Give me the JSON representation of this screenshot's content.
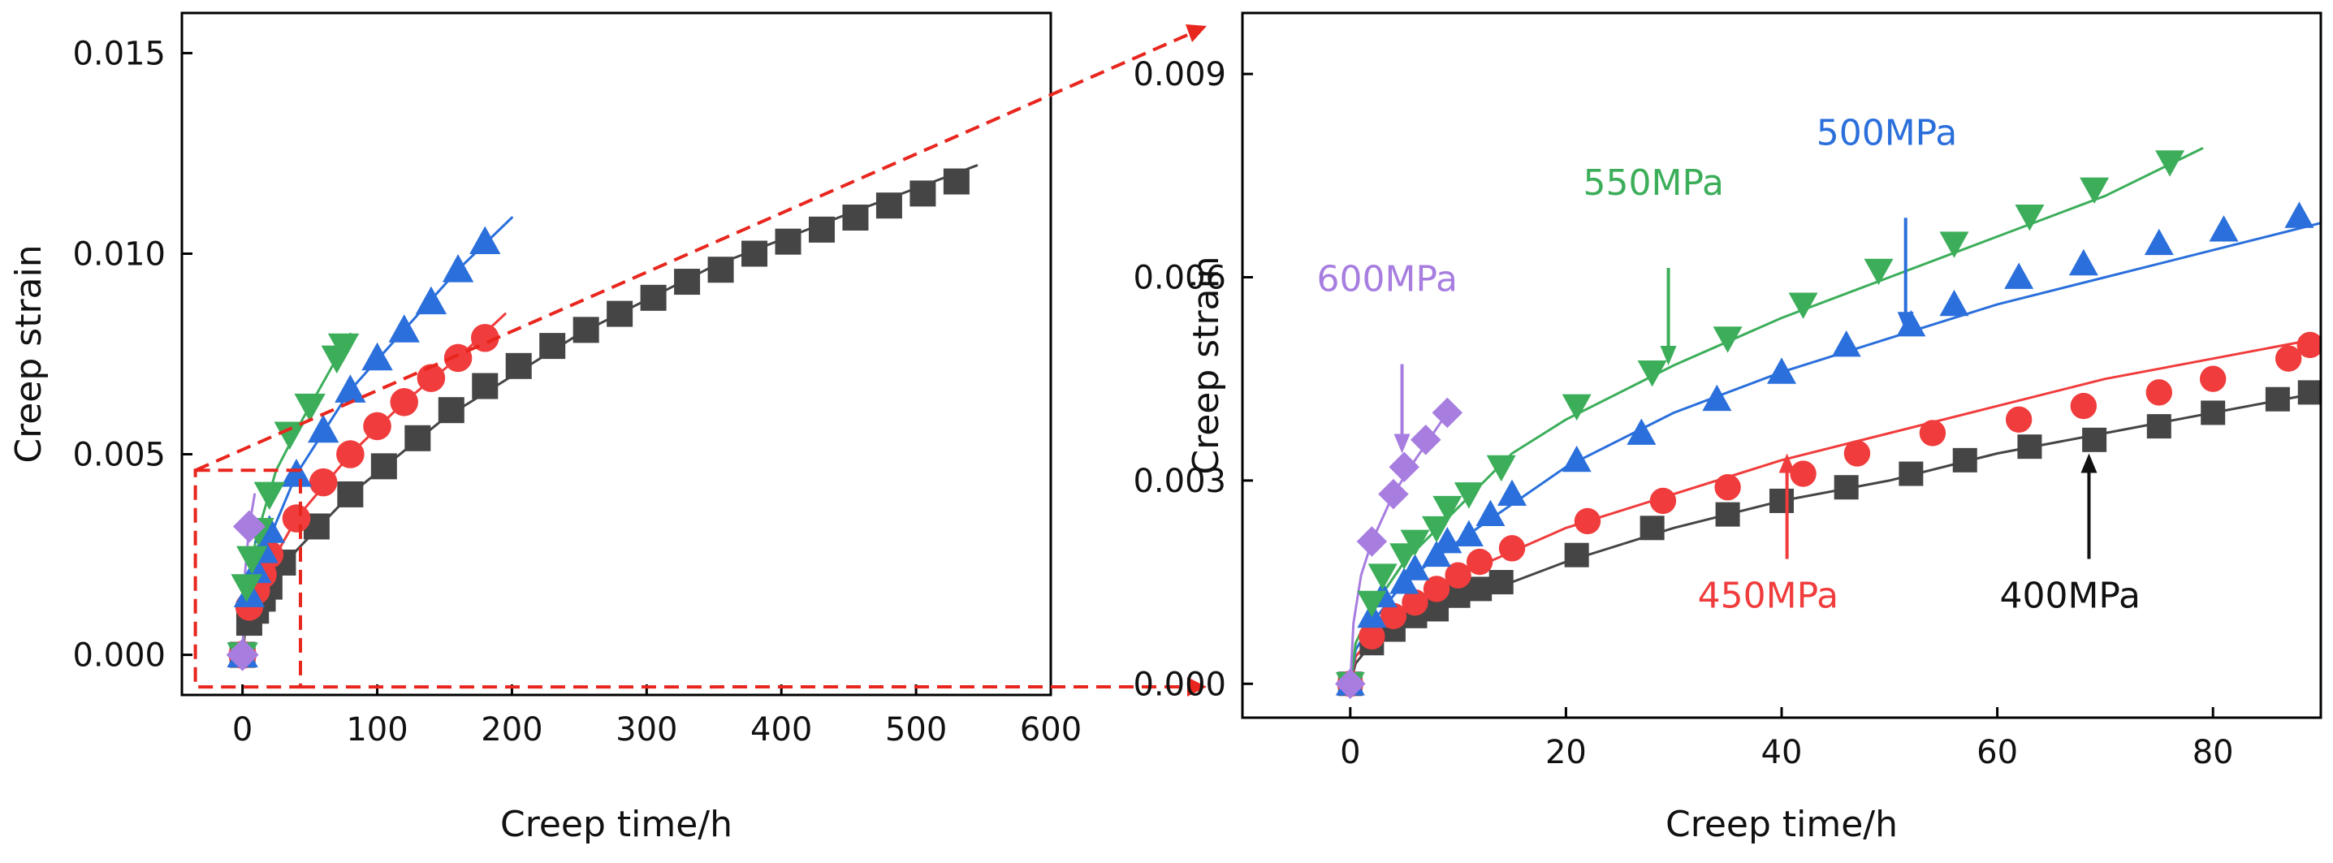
{
  "chart_data": [
    {
      "type": "scatter",
      "title": "",
      "xlabel": "Creep time/h",
      "ylabel": "Creep strain",
      "xlim": [
        -45,
        600
      ],
      "ylim": [
        -0.001,
        0.016
      ],
      "x_ticks": [
        0,
        100,
        200,
        300,
        400,
        500,
        600
      ],
      "x_tick_labels": [
        "0",
        "100",
        "200",
        "300",
        "400",
        "500",
        "600"
      ],
      "y_ticks": [
        0.0,
        0.005,
        0.01,
        0.015
      ],
      "y_tick_labels": [
        "0.000",
        "0.005",
        "0.010",
        "0.015"
      ],
      "grid": false,
      "legend": "none",
      "zoom_box": {
        "x": [
          -35,
          43
        ],
        "y": [
          -0.0008,
          0.0046
        ]
      },
      "series": [
        {
          "stress": "400MPa",
          "marker": "square",
          "color": "#454545",
          "x": [
            0,
            5,
            10,
            15,
            20,
            30,
            55,
            80,
            105,
            130,
            155,
            180,
            205,
            230,
            255,
            280,
            305,
            330,
            355,
            380,
            405,
            430,
            455,
            480,
            505,
            530
          ],
          "y": [
            0.0,
            0.0008,
            0.0011,
            0.0014,
            0.0017,
            0.0023,
            0.0032,
            0.004,
            0.0047,
            0.0054,
            0.0061,
            0.0067,
            0.0072,
            0.0077,
            0.0081,
            0.0085,
            0.0089,
            0.0093,
            0.0096,
            0.01,
            0.0103,
            0.0106,
            0.0109,
            0.0112,
            0.0115,
            0.0118
          ],
          "curve_x": [
            0,
            2,
            5,
            10,
            20,
            40,
            80,
            150,
            250,
            350,
            450,
            545
          ],
          "curve_y": [
            0.0,
            0.0006,
            0.0009,
            0.0012,
            0.0017,
            0.0026,
            0.004,
            0.0059,
            0.008,
            0.0097,
            0.011,
            0.0122
          ]
        },
        {
          "stress": "450MPa",
          "marker": "circle",
          "color": "#f03c3c",
          "x": [
            0,
            5,
            10,
            15,
            20,
            40,
            60,
            80,
            100,
            120,
            140,
            160,
            180
          ],
          "y": [
            0.0,
            0.0012,
            0.0016,
            0.002,
            0.0025,
            0.0034,
            0.0043,
            0.005,
            0.0057,
            0.0063,
            0.0069,
            0.0074,
            0.0079
          ],
          "curve_x": [
            0,
            2,
            10,
            40,
            80,
            120,
            160,
            195
          ],
          "curve_y": [
            0.0,
            0.0008,
            0.0016,
            0.0034,
            0.005,
            0.0063,
            0.0074,
            0.0085
          ]
        },
        {
          "stress": "500MPa",
          "marker": "triangle-up",
          "color": "#2a6fdb",
          "x": [
            0,
            5,
            10,
            15,
            20,
            40,
            60,
            80,
            100,
            120,
            140,
            160,
            180
          ],
          "y": [
            0.0,
            0.0015,
            0.0021,
            0.0026,
            0.0031,
            0.0045,
            0.0056,
            0.0066,
            0.0074,
            0.0081,
            0.0088,
            0.0096,
            0.0103
          ],
          "curve_x": [
            0,
            2,
            10,
            40,
            80,
            120,
            160,
            200
          ],
          "curve_y": [
            0.0,
            0.0011,
            0.0021,
            0.0045,
            0.0066,
            0.0081,
            0.0096,
            0.0109
          ]
        },
        {
          "stress": "550MPa",
          "marker": "triangle-down",
          "color": "#3cae5a",
          "x": [
            0,
            3,
            7,
            12,
            20,
            35,
            50,
            70,
            75
          ],
          "y": [
            0.0,
            0.0017,
            0.0024,
            0.0031,
            0.004,
            0.0055,
            0.0062,
            0.0074,
            0.0077
          ],
          "curve_x": [
            0,
            2,
            10,
            25,
            45,
            65,
            80
          ],
          "curve_y": [
            0.0,
            0.0012,
            0.0029,
            0.0046,
            0.0059,
            0.0071,
            0.008
          ]
        },
        {
          "stress": "600MPa",
          "marker": "diamond",
          "color": "#a77de0",
          "x": [
            0,
            5
          ],
          "y": [
            0.0,
            0.0032
          ],
          "curve_x": [
            0,
            2,
            5,
            9
          ],
          "curve_y": [
            0.0,
            0.0021,
            0.0032,
            0.004
          ]
        }
      ]
    },
    {
      "type": "scatter",
      "title": "",
      "xlabel": "Creep time/h",
      "ylabel": "Creep strain",
      "xlim": [
        -10,
        90
      ],
      "ylim": [
        -0.0005,
        0.0099
      ],
      "x_ticks": [
        0,
        20,
        40,
        60,
        80
      ],
      "x_tick_labels": [
        "0",
        "20",
        "40",
        "60",
        "80"
      ],
      "y_ticks": [
        0.0,
        0.003,
        0.006,
        0.009
      ],
      "y_tick_labels": [
        "0.000",
        "0.003",
        "0.006",
        "0.009"
      ],
      "grid": false,
      "legend": "none",
      "series": [
        {
          "stress": "400MPa",
          "marker": "square",
          "color": "#454545",
          "x": [
            0,
            2,
            4,
            6,
            8,
            10,
            12,
            14,
            21,
            28,
            35,
            40,
            46,
            52,
            57,
            63,
            69,
            75,
            80,
            86,
            89
          ],
          "y": [
            0.0,
            0.0006,
            0.0008,
            0.001,
            0.0011,
            0.0013,
            0.0014,
            0.0015,
            0.0019,
            0.0023,
            0.0025,
            0.0027,
            0.0029,
            0.0031,
            0.0033,
            0.0035,
            0.0036,
            0.0038,
            0.004,
            0.0042,
            0.0043
          ],
          "curve_x": [
            0,
            0.5,
            2,
            5,
            10,
            20,
            30,
            40,
            50,
            60,
            70,
            80,
            90
          ],
          "curve_y": [
            0.0,
            0.0003,
            0.0006,
            0.0009,
            0.0012,
            0.0018,
            0.0023,
            0.0027,
            0.003,
            0.0034,
            0.0037,
            0.004,
            0.0043
          ]
        },
        {
          "stress": "450MPa",
          "marker": "circle",
          "color": "#f03c3c",
          "x": [
            0,
            2,
            4,
            6,
            8,
            10,
            12,
            15,
            22,
            29,
            35,
            42,
            47,
            54,
            62,
            68,
            75,
            80,
            87,
            89
          ],
          "y": [
            0.0,
            0.0007,
            0.001,
            0.0012,
            0.0014,
            0.0016,
            0.0018,
            0.002,
            0.0024,
            0.0027,
            0.0029,
            0.0031,
            0.0034,
            0.0037,
            0.0039,
            0.0041,
            0.0043,
            0.0045,
            0.0048,
            0.005
          ],
          "curve_x": [
            0,
            0.5,
            2,
            5,
            10,
            20,
            30,
            40,
            50,
            60,
            70,
            80,
            90
          ],
          "curve_y": [
            0.0,
            0.0004,
            0.0007,
            0.0011,
            0.0016,
            0.0023,
            0.0028,
            0.0033,
            0.0037,
            0.0041,
            0.0045,
            0.0048,
            0.0051
          ]
        },
        {
          "stress": "500MPa",
          "marker": "triangle-up",
          "color": "#2a6fdb",
          "x": [
            0,
            2,
            3,
            5,
            6,
            8,
            9,
            11,
            13,
            15,
            21,
            27,
            34,
            40,
            46,
            52,
            56,
            62,
            68,
            75,
            81,
            88
          ],
          "y": [
            0.0,
            0.001,
            0.0013,
            0.0015,
            0.0017,
            0.0019,
            0.0021,
            0.0022,
            0.0025,
            0.0028,
            0.0033,
            0.0037,
            0.0042,
            0.0046,
            0.005,
            0.0053,
            0.0056,
            0.006,
            0.0062,
            0.0065,
            0.0067,
            0.0069
          ],
          "curve_x": [
            0,
            0.5,
            2,
            5,
            10,
            20,
            30,
            40,
            50,
            60,
            70,
            80,
            90
          ],
          "curve_y": [
            0.0,
            0.0005,
            0.0009,
            0.0015,
            0.0021,
            0.0032,
            0.004,
            0.0046,
            0.0051,
            0.0056,
            0.006,
            0.0064,
            0.0068
          ]
        },
        {
          "stress": "550MPa",
          "marker": "triangle-down",
          "color": "#3cae5a",
          "x": [
            0,
            2,
            3,
            5,
            6,
            8,
            9,
            11,
            14,
            21,
            28,
            35,
            42,
            49,
            56,
            63,
            69,
            76
          ],
          "y": [
            0.0,
            0.0012,
            0.0016,
            0.0019,
            0.0021,
            0.0023,
            0.0026,
            0.0028,
            0.0032,
            0.0041,
            0.0046,
            0.0051,
            0.0056,
            0.0061,
            0.0065,
            0.0069,
            0.0073,
            0.0077
          ],
          "curve_x": [
            0,
            0.5,
            2,
            5,
            10,
            15,
            20,
            30,
            40,
            50,
            60,
            70,
            79
          ],
          "curve_y": [
            0.0,
            0.0006,
            0.0011,
            0.0018,
            0.0026,
            0.0034,
            0.0039,
            0.0047,
            0.0054,
            0.006,
            0.0066,
            0.0072,
            0.0079
          ]
        },
        {
          "stress": "600MPa",
          "marker": "diamond",
          "color": "#a77de0",
          "x": [
            0,
            2,
            4,
            5,
            7,
            9
          ],
          "y": [
            0.0,
            0.0021,
            0.0028,
            0.0032,
            0.0036,
            0.004
          ],
          "curve_x": [
            0,
            0.3,
            1,
            2,
            4,
            6,
            9
          ],
          "curve_y": [
            0.0,
            0.0009,
            0.0016,
            0.0021,
            0.0028,
            0.0033,
            0.004
          ]
        }
      ],
      "annotations": [
        {
          "text": "600MPa",
          "color": "#a77de0",
          "tip": [
            4.8,
            0.0034
          ]
        },
        {
          "text": "550MPa",
          "color": "#3cae5a",
          "tip": [
            29.5,
            0.0047
          ]
        },
        {
          "text": "500MPa",
          "color": "#2a6fdb",
          "tip": [
            51.5,
            0.0052
          ]
        },
        {
          "text": "450MPa",
          "color": "#f03c3c",
          "tip": [
            40.5,
            0.0034
          ]
        },
        {
          "text": "400MPa",
          "color": "#111111",
          "tip": [
            68.5,
            0.0034
          ]
        }
      ]
    }
  ]
}
